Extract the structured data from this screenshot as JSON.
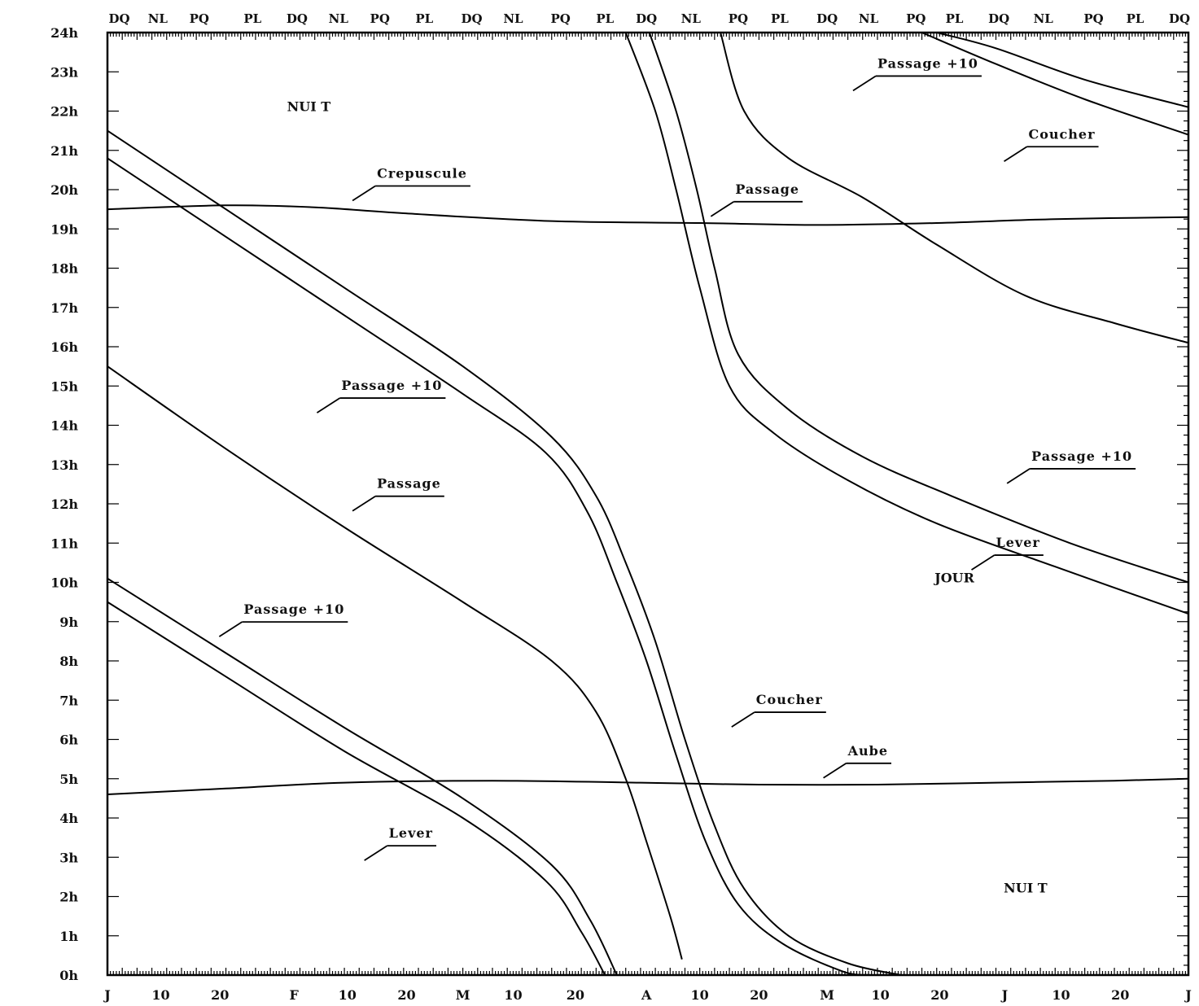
{
  "chart_data": {
    "type": "line",
    "x_unit": "day of year",
    "xlim": [
      0,
      365
    ],
    "ylim": [
      0,
      24
    ],
    "y_ticks": [
      "0h",
      "1h",
      "2h",
      "3h",
      "4h",
      "5h",
      "6h",
      "7h",
      "8h",
      "9h",
      "10h",
      "11h",
      "12h",
      "13h",
      "14h",
      "15h",
      "16h",
      "17h",
      "18h",
      "19h",
      "20h",
      "21h",
      "22h",
      "23h",
      "24h"
    ],
    "x_ticks": [
      {
        "x": 0,
        "label": "J"
      },
      {
        "x": 18,
        "label": "10"
      },
      {
        "x": 38,
        "label": "20"
      },
      {
        "x": 63,
        "label": "F"
      },
      {
        "x": 81,
        "label": "10"
      },
      {
        "x": 101,
        "label": "20"
      },
      {
        "x": 120,
        "label": "M"
      },
      {
        "x": 137,
        "label": "10"
      },
      {
        "x": 158,
        "label": "20"
      },
      {
        "x": 182,
        "label": "A"
      },
      {
        "x": 200,
        "label": "10"
      },
      {
        "x": 220,
        "label": "20"
      },
      {
        "x": 243,
        "label": "M"
      },
      {
        "x": 261,
        "label": "10"
      },
      {
        "x": 281,
        "label": "20"
      },
      {
        "x": 303,
        "label": "J"
      },
      {
        "x": 322,
        "label": "10"
      },
      {
        "x": 342,
        "label": "20"
      },
      {
        "x": 365,
        "label": "J"
      }
    ],
    "phases": [
      {
        "x": 4,
        "label": "DQ"
      },
      {
        "x": 17,
        "label": "NL"
      },
      {
        "x": 31,
        "label": "PQ"
      },
      {
        "x": 49,
        "label": "PL"
      },
      {
        "x": 64,
        "label": "DQ"
      },
      {
        "x": 78,
        "label": "NL"
      },
      {
        "x": 92,
        "label": "PQ"
      },
      {
        "x": 107,
        "label": "PL"
      },
      {
        "x": 123,
        "label": "DQ"
      },
      {
        "x": 137,
        "label": "NL"
      },
      {
        "x": 153,
        "label": "PQ"
      },
      {
        "x": 168,
        "label": "PL"
      },
      {
        "x": 182,
        "label": "DQ"
      },
      {
        "x": 197,
        "label": "NL"
      },
      {
        "x": 213,
        "label": "PQ"
      },
      {
        "x": 227,
        "label": "PL"
      },
      {
        "x": 243,
        "label": "DQ"
      },
      {
        "x": 257,
        "label": "NL"
      },
      {
        "x": 273,
        "label": "PQ"
      },
      {
        "x": 286,
        "label": "PL"
      },
      {
        "x": 301,
        "label": "DQ"
      },
      {
        "x": 316,
        "label": "NL"
      },
      {
        "x": 333,
        "label": "PQ"
      },
      {
        "x": 347,
        "label": "PL"
      },
      {
        "x": 362,
        "label": "DQ"
      }
    ],
    "series": [
      {
        "name": "Crepuscule",
        "points": [
          [
            0,
            19.5
          ],
          [
            40,
            19.6
          ],
          [
            70,
            19.55
          ],
          [
            100,
            19.4
          ],
          [
            150,
            19.2
          ],
          [
            200,
            19.15
          ],
          [
            240,
            19.1
          ],
          [
            280,
            19.15
          ],
          [
            320,
            19.25
          ],
          [
            365,
            19.3
          ]
        ]
      },
      {
        "name": "Aube",
        "points": [
          [
            0,
            4.6
          ],
          [
            40,
            4.75
          ],
          [
            80,
            4.9
          ],
          [
            130,
            4.95
          ],
          [
            180,
            4.9
          ],
          [
            220,
            4.85
          ],
          [
            260,
            4.85
          ],
          [
            300,
            4.9
          ],
          [
            340,
            4.95
          ],
          [
            365,
            5.0
          ]
        ]
      },
      {
        "name": "Passage +10 (a)",
        "points": [
          [
            0,
            21.5
          ],
          [
            40,
            19.5
          ],
          [
            80,
            17.5
          ],
          [
            120,
            15.5
          ],
          [
            150,
            13.7
          ],
          [
            165,
            12.2
          ],
          [
            175,
            10.5
          ],
          [
            185,
            8.5
          ],
          [
            195,
            6.0
          ],
          [
            205,
            3.8
          ],
          [
            215,
            2.2
          ],
          [
            230,
            1.0
          ],
          [
            250,
            0.3
          ],
          [
            268,
            0.0
          ]
        ]
      },
      {
        "name": "Passage (a)",
        "points": [
          [
            0,
            20.8
          ],
          [
            40,
            18.8
          ],
          [
            80,
            16.8
          ],
          [
            120,
            14.8
          ],
          [
            148,
            13.3
          ],
          [
            162,
            11.8
          ],
          [
            172,
            10.0
          ],
          [
            182,
            8.0
          ],
          [
            192,
            5.6
          ],
          [
            202,
            3.4
          ],
          [
            213,
            1.8
          ],
          [
            228,
            0.8
          ],
          [
            248,
            0.1
          ],
          [
            257,
            0.0
          ]
        ]
      },
      {
        "name": "Passage (b)",
        "points": [
          [
            0,
            15.5
          ],
          [
            40,
            13.4
          ],
          [
            80,
            11.4
          ],
          [
            120,
            9.5
          ],
          [
            150,
            8.0
          ],
          [
            165,
            6.7
          ],
          [
            175,
            5.0
          ],
          [
            182,
            3.4
          ],
          [
            190,
            1.5
          ],
          [
            194,
            0.4
          ]
        ]
      },
      {
        "name": "Passage +10 (b)",
        "points": [
          [
            0,
            10.1
          ],
          [
            40,
            8.2
          ],
          [
            80,
            6.3
          ],
          [
            120,
            4.5
          ],
          [
            150,
            2.8
          ],
          [
            163,
            1.4
          ],
          [
            172,
            0.0
          ]
        ]
      },
      {
        "name": "Lever (a)",
        "points": [
          [
            0,
            9.5
          ],
          [
            40,
            7.6
          ],
          [
            80,
            5.7
          ],
          [
            120,
            4.0
          ],
          [
            148,
            2.4
          ],
          [
            160,
            1.1
          ],
          [
            168,
            0.0
          ]
        ]
      },
      {
        "name": "Coucher (a)",
        "points": [
          [
            175,
            24.0
          ],
          [
            185,
            22.0
          ],
          [
            192,
            20.0
          ],
          [
            200,
            17.5
          ],
          [
            210,
            15.0
          ],
          [
            225,
            13.8
          ],
          [
            250,
            12.6
          ],
          [
            280,
            11.5
          ],
          [
            320,
            10.4
          ],
          [
            365,
            9.2
          ]
        ]
      },
      {
        "name": "Coucher (b)",
        "points": [
          [
            183,
            24.0
          ],
          [
            192,
            22.0
          ],
          [
            199,
            20.0
          ],
          [
            205,
            18.0
          ],
          [
            213,
            15.8
          ],
          [
            230,
            14.4
          ],
          [
            255,
            13.2
          ],
          [
            285,
            12.2
          ],
          [
            325,
            11.0
          ],
          [
            365,
            10.0
          ]
        ]
      },
      {
        "name": "Passage (c)",
        "points": [
          [
            207,
            24.0
          ],
          [
            215,
            22.0
          ],
          [
            230,
            20.8
          ],
          [
            255,
            19.8
          ],
          [
            280,
            18.6
          ],
          [
            310,
            17.3
          ],
          [
            340,
            16.6
          ],
          [
            365,
            16.1
          ]
        ]
      },
      {
        "name": "Passage +10 (c)",
        "points": [
          [
            280,
            24.0
          ],
          [
            300,
            23.6
          ],
          [
            330,
            22.8
          ],
          [
            365,
            22.1
          ]
        ]
      },
      {
        "name": "Coucher (c)",
        "points": [
          [
            275,
            24.0
          ],
          [
            300,
            23.2
          ],
          [
            330,
            22.3
          ],
          [
            365,
            21.4
          ]
        ]
      }
    ],
    "annotations": [
      {
        "text": "Crepuscule",
        "x": 91,
        "y": 20.3
      },
      {
        "text": "Passage +10",
        "x": 79,
        "y": 14.9
      },
      {
        "text": "Passage",
        "x": 91,
        "y": 12.4
      },
      {
        "text": "Passage +10",
        "x": 46,
        "y": 9.2
      },
      {
        "text": "Lever",
        "x": 95,
        "y": 3.5
      },
      {
        "text": "Coucher",
        "x": 219,
        "y": 6.9
      },
      {
        "text": "Aube",
        "x": 250,
        "y": 5.6
      },
      {
        "text": "Passage",
        "x": 212,
        "y": 19.9
      },
      {
        "text": "Passage +10",
        "x": 260,
        "y": 23.1
      },
      {
        "text": "Coucher",
        "x": 311,
        "y": 21.3
      },
      {
        "text": "Passage +10",
        "x": 312,
        "y": 13.1
      },
      {
        "text": "Lever",
        "x": 300,
        "y": 10.9
      }
    ],
    "regions": [
      {
        "text": "NUI T",
        "x": 68,
        "y": 22.0
      },
      {
        "text": "JOUR",
        "x": 286,
        "y": 10.0
      },
      {
        "text": "NUI T",
        "x": 310,
        "y": 2.1
      }
    ]
  }
}
